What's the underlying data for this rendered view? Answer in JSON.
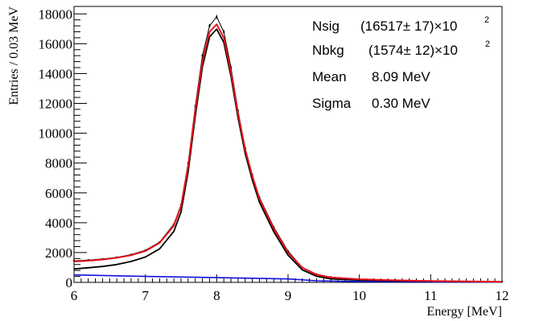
{
  "chart_data": {
    "type": "line",
    "xlabel": "Energy [MeV]",
    "ylabel": "Entries / 0.03 MeV",
    "xlim": [
      6,
      12
    ],
    "ylim": [
      0,
      18500
    ],
    "x_ticks": [
      6,
      7,
      8,
      9,
      10,
      11,
      12
    ],
    "y_ticks": [
      0,
      2000,
      4000,
      6000,
      8000,
      10000,
      12000,
      14000,
      16000,
      18000
    ],
    "grid": false,
    "legend": "none",
    "colors": {
      "data": "#000000",
      "total_fit": "#e8101a",
      "signal": "#000000",
      "background": "#1010e0"
    },
    "series": [
      {
        "role": "data",
        "x": [
          6.0,
          6.2,
          6.4,
          6.6,
          6.8,
          7.0,
          7.2,
          7.4,
          7.5,
          7.6,
          7.7,
          7.8,
          7.9,
          8.0,
          8.1,
          8.2,
          8.3,
          8.4,
          8.5,
          8.6,
          8.8,
          9.0,
          9.2,
          9.4,
          9.6,
          10.0,
          10.5,
          11.0,
          11.5,
          12.0
        ],
        "values": [
          1450,
          1500,
          1570,
          1680,
          1860,
          2150,
          2700,
          3900,
          5200,
          8000,
          11800,
          15200,
          17200,
          17800,
          16800,
          14400,
          11500,
          9000,
          7200,
          5700,
          3700,
          2100,
          1000,
          550,
          350,
          220,
          150,
          100,
          70,
          50
        ]
      },
      {
        "role": "total-fit",
        "x": [
          6.0,
          6.2,
          6.4,
          6.6,
          6.8,
          7.0,
          7.2,
          7.4,
          7.5,
          7.6,
          7.7,
          7.8,
          7.9,
          8.0,
          8.1,
          8.2,
          8.3,
          8.4,
          8.5,
          8.6,
          8.8,
          9.0,
          9.2,
          9.4,
          9.6,
          10.0,
          10.5,
          11.0,
          11.5,
          12.0
        ],
        "values": [
          1400,
          1450,
          1530,
          1650,
          1820,
          2100,
          2650,
          3800,
          5100,
          7800,
          11500,
          14800,
          16800,
          17300,
          16400,
          14100,
          11300,
          8900,
          7100,
          5600,
          3600,
          2000,
          980,
          520,
          330,
          210,
          140,
          95,
          65,
          45
        ]
      },
      {
        "role": "signal",
        "x": [
          6.0,
          6.2,
          6.4,
          6.6,
          6.8,
          7.0,
          7.2,
          7.4,
          7.5,
          7.6,
          7.7,
          7.8,
          7.9,
          8.0,
          8.1,
          8.2,
          8.3,
          8.4,
          8.5,
          8.6,
          8.8,
          9.0,
          9.2,
          9.4,
          9.6,
          10.0,
          10.5,
          11.0,
          11.5,
          12.0
        ],
        "values": [
          900,
          980,
          1070,
          1200,
          1400,
          1700,
          2250,
          3420,
          4720,
          7430,
          11140,
          14450,
          16460,
          16980,
          16090,
          13810,
          11030,
          8640,
          6850,
          5370,
          3400,
          1830,
          840,
          410,
          240,
          150,
          110,
          80,
          55,
          40
        ]
      },
      {
        "role": "background",
        "x": [
          6.0,
          7.0,
          8.0,
          9.0,
          9.4,
          10.0,
          11.0,
          12.0
        ],
        "values": [
          500,
          400,
          320,
          230,
          110,
          60,
          30,
          20
        ]
      }
    ]
  },
  "stats": [
    {
      "label": "Nsig",
      "value": "(16517± 17)×10",
      "exponent": "2"
    },
    {
      "label": "Nbkg",
      "value": "(1574± 12)×10",
      "exponent": "2"
    },
    {
      "label": "Mean",
      "value": "8.09 MeV",
      "exponent": ""
    },
    {
      "label": "Sigma",
      "value": "0.30 MeV",
      "exponent": ""
    }
  ]
}
